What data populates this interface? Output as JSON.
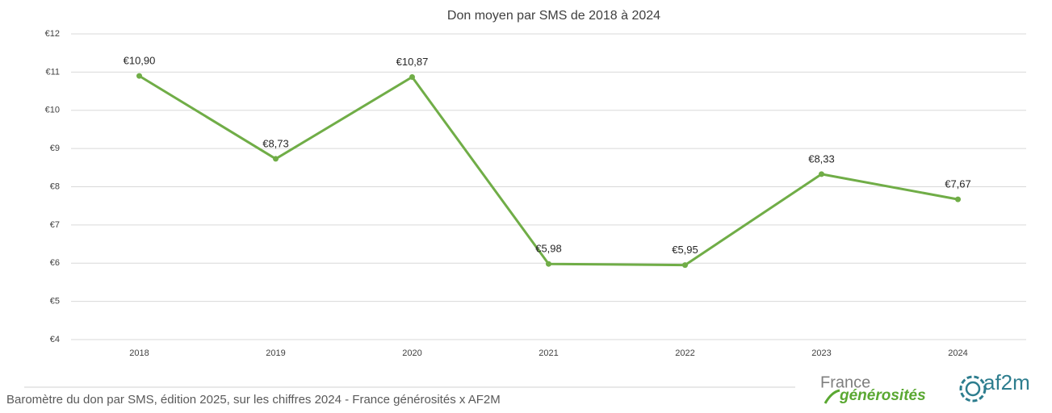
{
  "chart_data": {
    "type": "line",
    "title": "Don moyen par SMS de 2018 à 2024",
    "categories": [
      "2018",
      "2019",
      "2020",
      "2021",
      "2022",
      "2023",
      "2024"
    ],
    "values": [
      10.9,
      8.73,
      10.87,
      5.98,
      5.95,
      8.33,
      7.67
    ],
    "value_labels": [
      "€10,90",
      "€8,73",
      "€10,87",
      "€5,98",
      "€5,95",
      "€8,33",
      "€7,67"
    ],
    "color": "#70ad47",
    "ylim": [
      4,
      12
    ],
    "yticks": [
      {
        "value": 4,
        "label": "€4"
      },
      {
        "value": 5,
        "label": "€5"
      },
      {
        "value": 6,
        "label": "€6"
      },
      {
        "value": 7,
        "label": "€7"
      },
      {
        "value": 8,
        "label": "€8"
      },
      {
        "value": 9,
        "label": "€9"
      },
      {
        "value": 10,
        "label": "€10"
      },
      {
        "value": 11,
        "label": "€11"
      },
      {
        "value": 12,
        "label": "€12"
      }
    ],
    "grid": true
  },
  "footer": {
    "source": "Baromètre du don par SMS, édition 2025, sur les chiffres 2024 - France générosités x AF2M",
    "logo_france_top": "France",
    "logo_france_bottom": "générosités",
    "logo_af2m": "af2m"
  }
}
